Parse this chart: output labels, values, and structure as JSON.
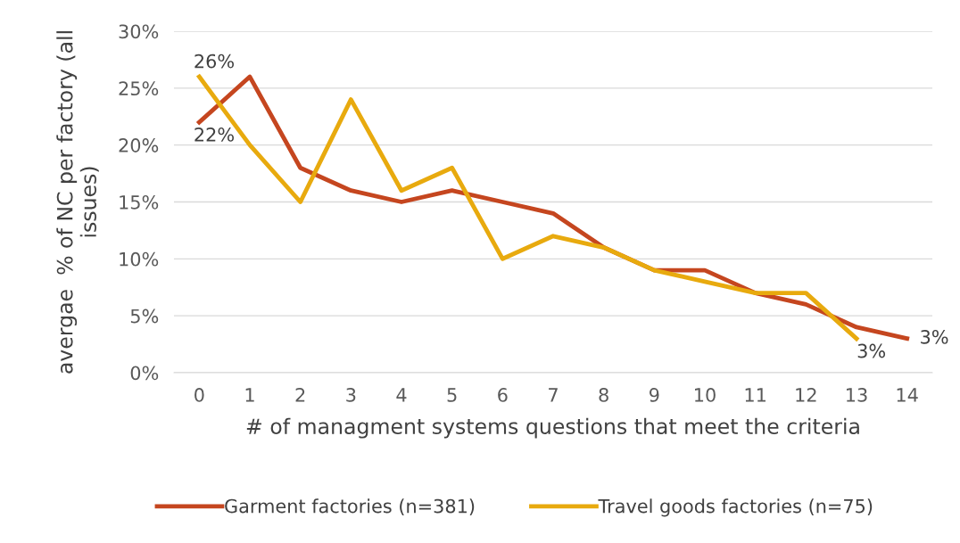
{
  "chart_data": {
    "type": "line",
    "xlabel": "# of managment systems questions that meet the criteria",
    "ylabel": "avergae  % of NC per factory (all\nissues)",
    "categories": [
      "0",
      "1",
      "2",
      "3",
      "4",
      "5",
      "6",
      "7",
      "8",
      "9",
      "10",
      "11",
      "12",
      "13",
      "14"
    ],
    "series": [
      {
        "name": "Garment factories (n=381)",
        "color": "#c5461f",
        "values": [
          22,
          26,
          18,
          16,
          15,
          16,
          15,
          14,
          11,
          9,
          9,
          7,
          6,
          4,
          3
        ],
        "value_labels": [
          "22%",
          null,
          null,
          null,
          null,
          null,
          null,
          null,
          null,
          null,
          null,
          null,
          null,
          null,
          "3%"
        ]
      },
      {
        "name": "Travel goods factories (n=75)",
        "color": "#e8aa0e",
        "values": [
          26,
          20,
          15,
          24,
          16,
          18,
          10,
          12,
          11,
          9,
          8,
          7,
          7,
          3,
          null
        ],
        "value_labels": [
          "26%",
          null,
          null,
          null,
          null,
          null,
          null,
          null,
          null,
          null,
          null,
          null,
          null,
          "3%",
          null
        ]
      }
    ],
    "ylim": [
      0,
      30
    ],
    "yticks": [
      {
        "value": 0,
        "label": "0%"
      },
      {
        "value": 5,
        "label": "5%"
      },
      {
        "value": 10,
        "label": "10%"
      },
      {
        "value": 15,
        "label": "15%"
      },
      {
        "value": 20,
        "label": "20%"
      },
      {
        "value": 25,
        "label": "25%"
      },
      {
        "value": 30,
        "label": "30%"
      }
    ],
    "grid": "y",
    "legend": "bottom",
    "marker": "none",
    "line_style": "solid"
  }
}
